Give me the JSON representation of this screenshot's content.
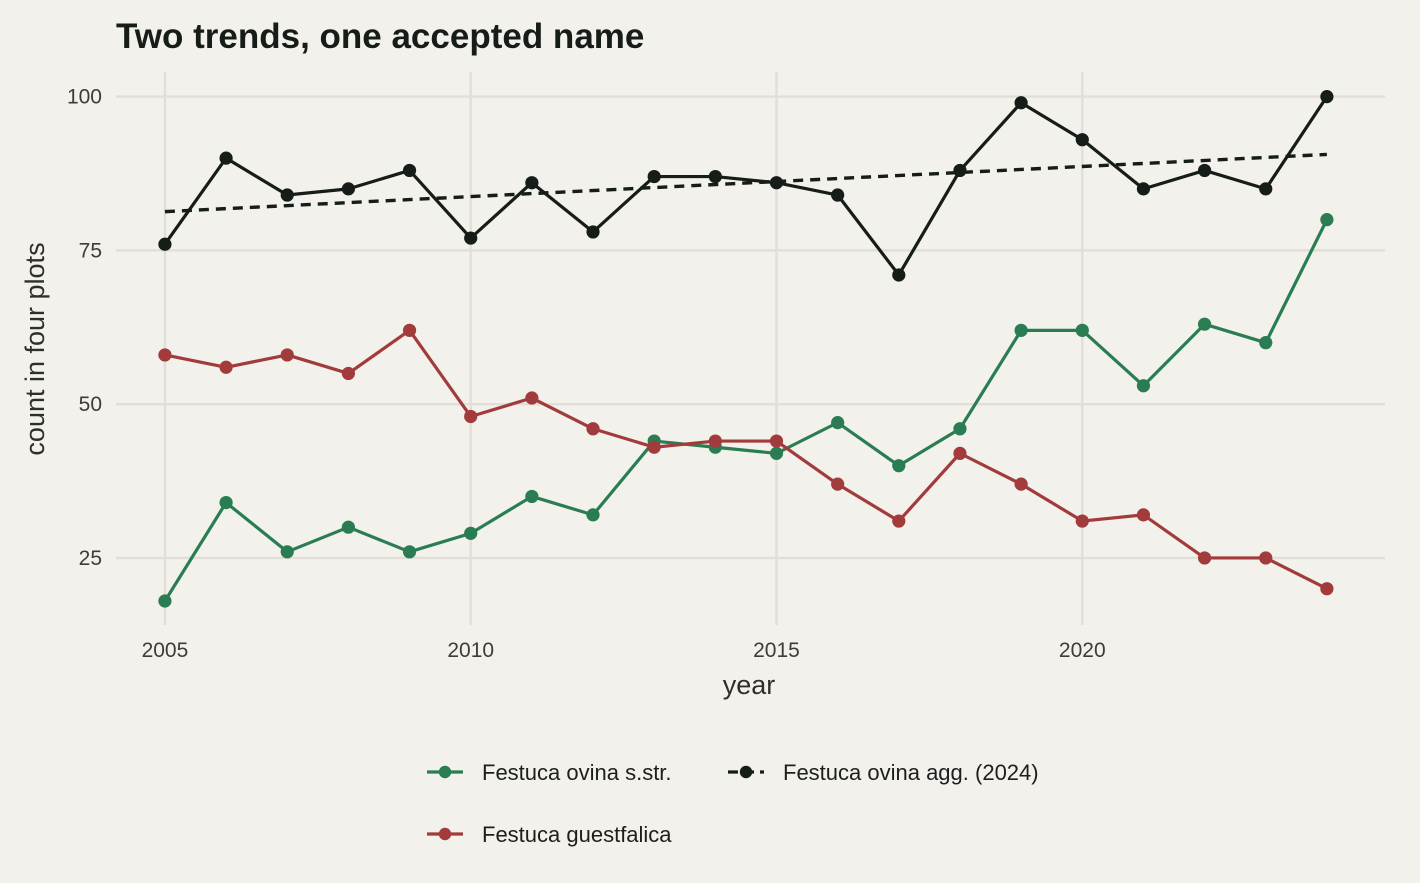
{
  "chart_data": {
    "type": "line",
    "title": "Two trends, one accepted name",
    "xlabel": "year",
    "ylabel": "count in four plots",
    "x": [
      2005,
      2006,
      2007,
      2008,
      2009,
      2010,
      2011,
      2012,
      2013,
      2014,
      2015,
      2016,
      2017,
      2018,
      2019,
      2020,
      2021,
      2022,
      2023,
      2024
    ],
    "x_ticks": [
      "2005",
      "2010",
      "2015",
      "2020"
    ],
    "y_ticks": [
      "25",
      "50",
      "75",
      "100"
    ],
    "xlim": [
      2004.2,
      2024.95
    ],
    "ylim": [
      14.1,
      104.0
    ],
    "grid": true,
    "legend_position": "bottom",
    "series": [
      {
        "name": "Festuca ovina s.str.",
        "color": "#2a7d52",
        "values": [
          18,
          34,
          26,
          30,
          26,
          29,
          35,
          32,
          44,
          43,
          42,
          47,
          40,
          46,
          62,
          62,
          53,
          63,
          60,
          80
        ]
      },
      {
        "name": "Festuca ovina agg. (2024)",
        "color": "#161c18",
        "values": [
          76,
          90,
          84,
          85,
          88,
          77,
          86,
          78,
          87,
          87,
          86,
          84,
          71,
          88,
          99,
          93,
          85,
          88,
          85,
          100
        ],
        "trend_line": {
          "style": "dashed",
          "start": [
            2005,
            81.3
          ],
          "end": [
            2024,
            90.6
          ]
        }
      },
      {
        "name": "Festuca guestfalica",
        "color": "#a23b3b",
        "values": [
          58,
          56,
          58,
          55,
          62,
          48,
          51,
          46,
          43,
          44,
          44,
          37,
          31,
          42,
          37,
          31,
          32,
          25,
          25,
          20
        ]
      }
    ]
  }
}
